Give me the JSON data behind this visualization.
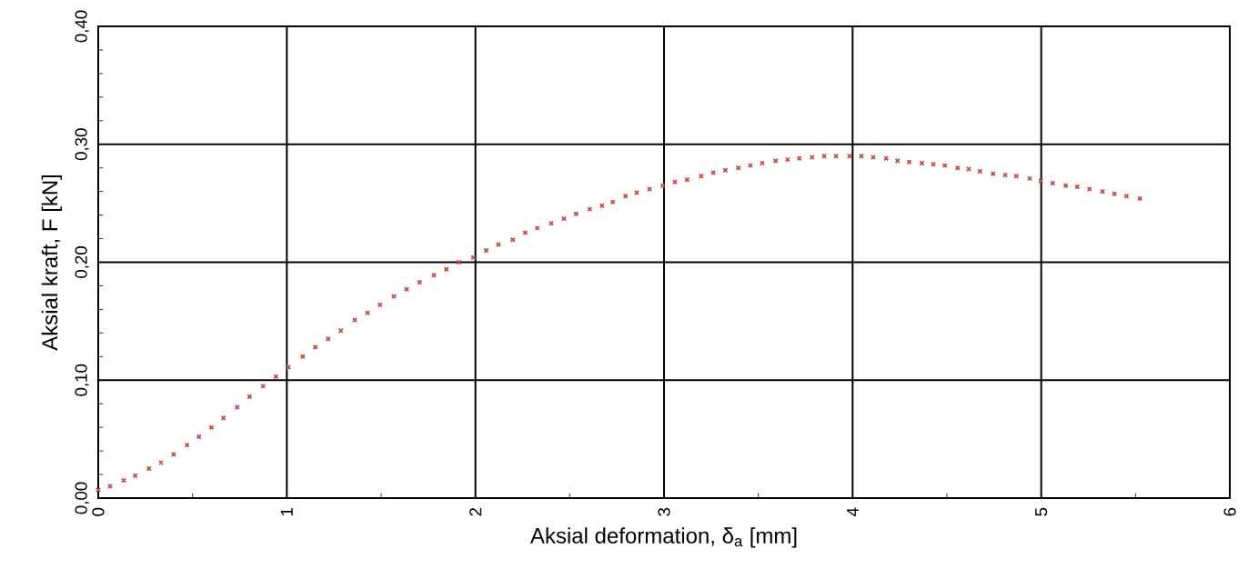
{
  "chart_data": {
    "type": "scatter",
    "xlabel": "Aksial deformation, δ$_{a}$ [mm]",
    "ylabel": "Aksial kraft, F [kN]",
    "x": [
      0.0,
      0.063,
      0.135,
      0.196,
      0.269,
      0.333,
      0.4,
      0.471,
      0.534,
      0.6,
      0.664,
      0.737,
      0.802,
      0.874,
      0.942,
      1.008,
      1.084,
      1.151,
      1.219,
      1.286,
      1.36,
      1.428,
      1.494,
      1.568,
      1.635,
      1.704,
      1.78,
      1.846,
      1.913,
      1.989,
      2.057,
      2.122,
      2.198,
      2.264,
      2.328,
      2.402,
      2.469,
      2.534,
      2.606,
      2.671,
      2.728,
      2.796,
      2.855,
      2.923,
      2.994,
      3.058,
      3.122,
      3.197,
      3.261,
      3.325,
      3.394,
      3.458,
      3.521,
      3.592,
      3.655,
      3.717,
      3.785,
      3.849,
      3.912,
      3.984,
      4.047,
      4.109,
      4.178,
      4.238,
      4.3,
      4.367,
      4.428,
      4.489,
      4.557,
      4.616,
      4.675,
      4.745,
      4.809,
      4.868,
      4.939,
      4.998,
      5.061,
      5.13,
      5.191,
      5.256,
      5.325,
      5.388,
      5.452,
      5.523
    ],
    "values": [
      0.007,
      0.01,
      0.015,
      0.019,
      0.025,
      0.03,
      0.037,
      0.045,
      0.052,
      0.06,
      0.068,
      0.077,
      0.086,
      0.095,
      0.103,
      0.111,
      0.12,
      0.128,
      0.135,
      0.142,
      0.151,
      0.157,
      0.164,
      0.171,
      0.177,
      0.183,
      0.189,
      0.194,
      0.2,
      0.204,
      0.21,
      0.215,
      0.219,
      0.225,
      0.229,
      0.233,
      0.237,
      0.241,
      0.245,
      0.248,
      0.251,
      0.256,
      0.259,
      0.262,
      0.265,
      0.268,
      0.27,
      0.273,
      0.276,
      0.278,
      0.28,
      0.282,
      0.284,
      0.286,
      0.287,
      0.288,
      0.289,
      0.29,
      0.29,
      0.29,
      0.29,
      0.289,
      0.288,
      0.286,
      0.285,
      0.284,
      0.283,
      0.282,
      0.28,
      0.279,
      0.277,
      0.275,
      0.274,
      0.273,
      0.271,
      0.269,
      0.267,
      0.265,
      0.264,
      0.262,
      0.26,
      0.258,
      0.256,
      0.254
    ],
    "color": "#c0504d",
    "marker": "cross",
    "grid": true,
    "xlim": [
      0,
      6
    ],
    "xticks": [
      0,
      1,
      2,
      3,
      4,
      5,
      6
    ],
    "ylim": [
      0,
      0.4
    ],
    "yticks": [
      {
        "value": 0,
        "label": "0,00"
      },
      {
        "value": 0.1,
        "label": "0,10"
      },
      {
        "value": 0.2,
        "label": "0,20"
      },
      {
        "value": 0.3,
        "label": "0,30"
      },
      {
        "value": 0.4,
        "label": "0,40"
      }
    ]
  }
}
